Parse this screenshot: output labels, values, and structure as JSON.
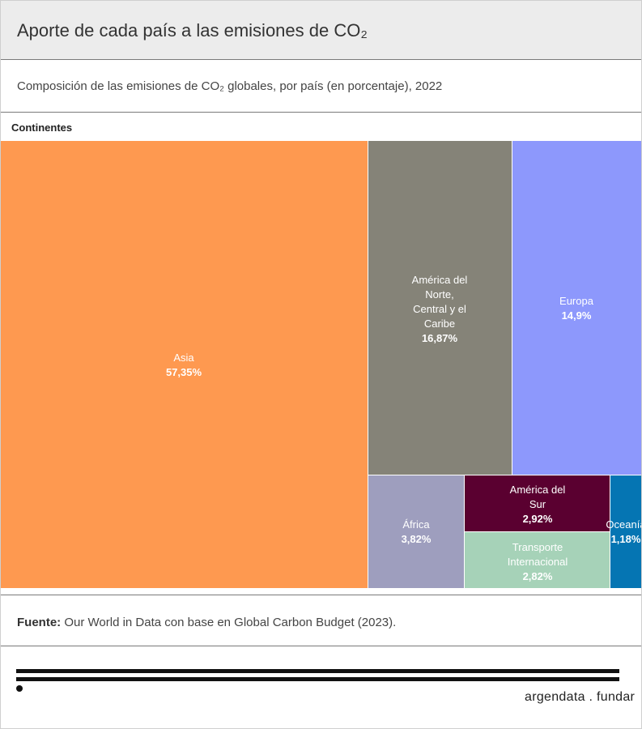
{
  "header": {
    "title": "Aporte de cada país a las emisiones de CO₂",
    "subtitle": "Composición de las emisiones de CO₂ globales, por país (en porcentaje), 2022"
  },
  "chart_data": {
    "type": "treemap",
    "group_label": "Continentes",
    "items": [
      {
        "name": "Asia",
        "value": 57.35,
        "label": "57,35%",
        "color": "#fe9950"
      },
      {
        "name": "América del Norte, Central y el Caribe",
        "value": 16.87,
        "label": "16,87%",
        "color": "#858378"
      },
      {
        "name": "Europa",
        "value": 14.9,
        "label": "14,9%",
        "color": "#8d98fc"
      },
      {
        "name": "África",
        "value": 3.82,
        "label": "3,82%",
        "color": "#9e9ebe"
      },
      {
        "name": "América del Sur",
        "value": 2.92,
        "label": "2,92%",
        "color": "#5a0030"
      },
      {
        "name": "Transporte Internacional",
        "value": 2.82,
        "label": "2,82%",
        "color": "#a6d2b8"
      },
      {
        "name": "Oceanía",
        "value": 1.18,
        "label": "1,18%",
        "color": "#0575b3"
      }
    ]
  },
  "footer": {
    "source_label": "Fuente:",
    "source_text": "Our World in Data con base en Global Carbon Budget (2023).",
    "brand": "argendata . fundar"
  }
}
